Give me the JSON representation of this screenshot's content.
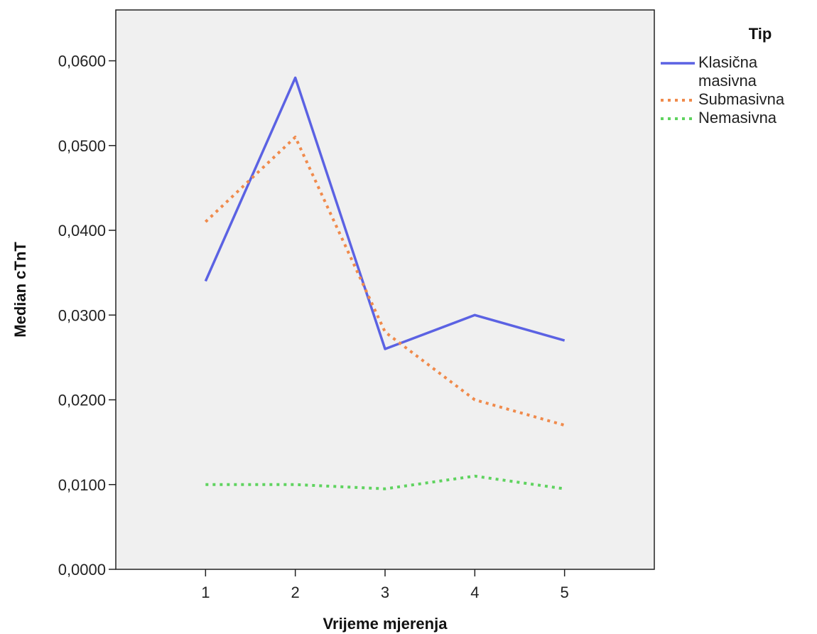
{
  "chart_data": {
    "type": "line",
    "xlabel": "Vrijeme mjerenja",
    "ylabel": "Median cTnT",
    "x": [
      1,
      2,
      3,
      4,
      5
    ],
    "x_tick_labels": [
      "1",
      "2",
      "3",
      "4",
      "5"
    ],
    "y_tick_labels": [
      "0,0000",
      "0,0100",
      "0,0200",
      "0,0300",
      "0,0400",
      "0,0500",
      "0,0600"
    ],
    "y_ticks": [
      0,
      0.01,
      0.02,
      0.03,
      0.04,
      0.05,
      0.06
    ],
    "ylim": [
      0,
      0.066
    ],
    "xlim": [
      0,
      6
    ],
    "grid": false,
    "legend": {
      "title": "Tip",
      "placement": "right",
      "entries": [
        {
          "lines": [
            "Klasična",
            "masivna"
          ]
        },
        {
          "lines": [
            "Submasivna"
          ]
        },
        {
          "lines": [
            "Nemasivna"
          ]
        }
      ]
    },
    "series": [
      {
        "name": "Klasična masivna",
        "values": [
          0.034,
          0.058,
          0.026,
          0.03,
          0.027
        ],
        "color": "#5b62e3",
        "style": "solid"
      },
      {
        "name": "Submasivna",
        "values": [
          0.041,
          0.051,
          0.028,
          0.02,
          0.017
        ],
        "color": "#f08a4b",
        "style": "dotted"
      },
      {
        "name": "Nemasivna",
        "values": [
          0.01,
          0.01,
          0.0095,
          0.011,
          0.0095
        ],
        "color": "#5fd35f",
        "style": "dotted"
      }
    ],
    "plot_background": "#f0f0f0"
  }
}
